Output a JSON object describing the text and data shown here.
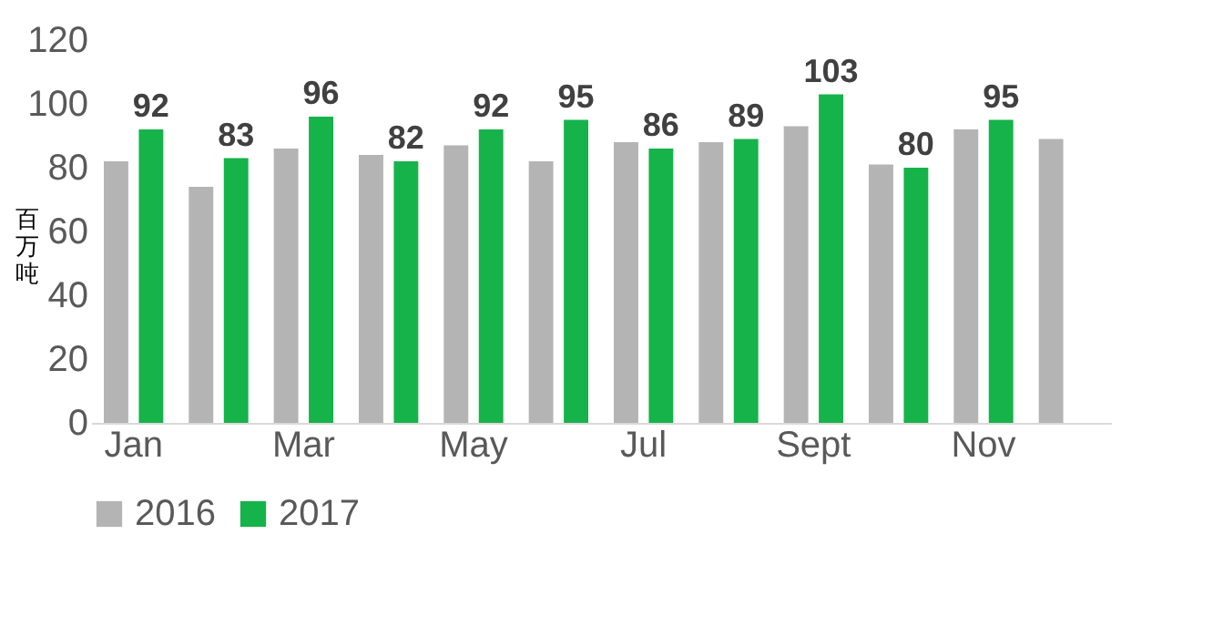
{
  "chart_data": {
    "type": "bar",
    "ylabel": "百万吨",
    "categories": [
      "Jan",
      null,
      "Mar",
      null,
      "May",
      null,
      "Jul",
      null,
      "Sept",
      null,
      "Nov",
      null
    ],
    "series": [
      {
        "name": "2016",
        "color": "#b4b4b4",
        "values": [
          82,
          74,
          86,
          84,
          87,
          82,
          88,
          88,
          93,
          81,
          92,
          89
        ]
      },
      {
        "name": "2017",
        "color": "#16b34a",
        "values": [
          92,
          83,
          96,
          82,
          92,
          95,
          86,
          89,
          103,
          80,
          95,
          null
        ],
        "value_labels": [
          "92",
          "83",
          "96",
          "82",
          "92",
          "95",
          "86",
          "89",
          "103",
          "80",
          "95",
          null
        ]
      }
    ],
    "ylim": [
      0,
      120
    ],
    "yticks": [
      0,
      20,
      40,
      60,
      80,
      100,
      120
    ],
    "grid": false,
    "legend": "bottom"
  }
}
